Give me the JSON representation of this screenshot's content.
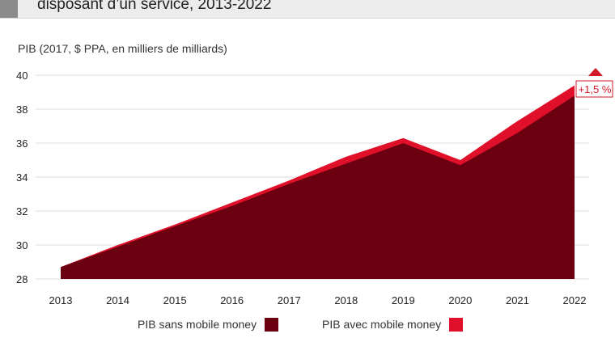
{
  "header": {
    "title": "disposant d’un service, 2013-2022"
  },
  "chart_data": {
    "type": "area",
    "ylabel": "PIB (2017, $ PPA, en milliers de milliards)",
    "x": [
      "2013",
      "2014",
      "2015",
      "2016",
      "2017",
      "2018",
      "2019",
      "2020",
      "2021",
      "2022"
    ],
    "y_ticks": [
      "28",
      "30",
      "32",
      "34",
      "36",
      "38",
      "40"
    ],
    "ylim": [
      28,
      40
    ],
    "grid": true,
    "series": [
      {
        "name": "PIB sans mobile money",
        "values": [
          28.7,
          29.9,
          31.1,
          32.3,
          33.6,
          34.8,
          36.0,
          34.7,
          36.6,
          38.8
        ],
        "color": "#6b0010"
      },
      {
        "name": "PIB avec mobile money",
        "values": [
          28.7,
          30.0,
          31.2,
          32.5,
          33.8,
          35.2,
          36.3,
          35.0,
          37.3,
          39.4
        ],
        "color": "#e0102a"
      }
    ],
    "annotation": "+1,5 %",
    "legend_position": "bottom"
  }
}
